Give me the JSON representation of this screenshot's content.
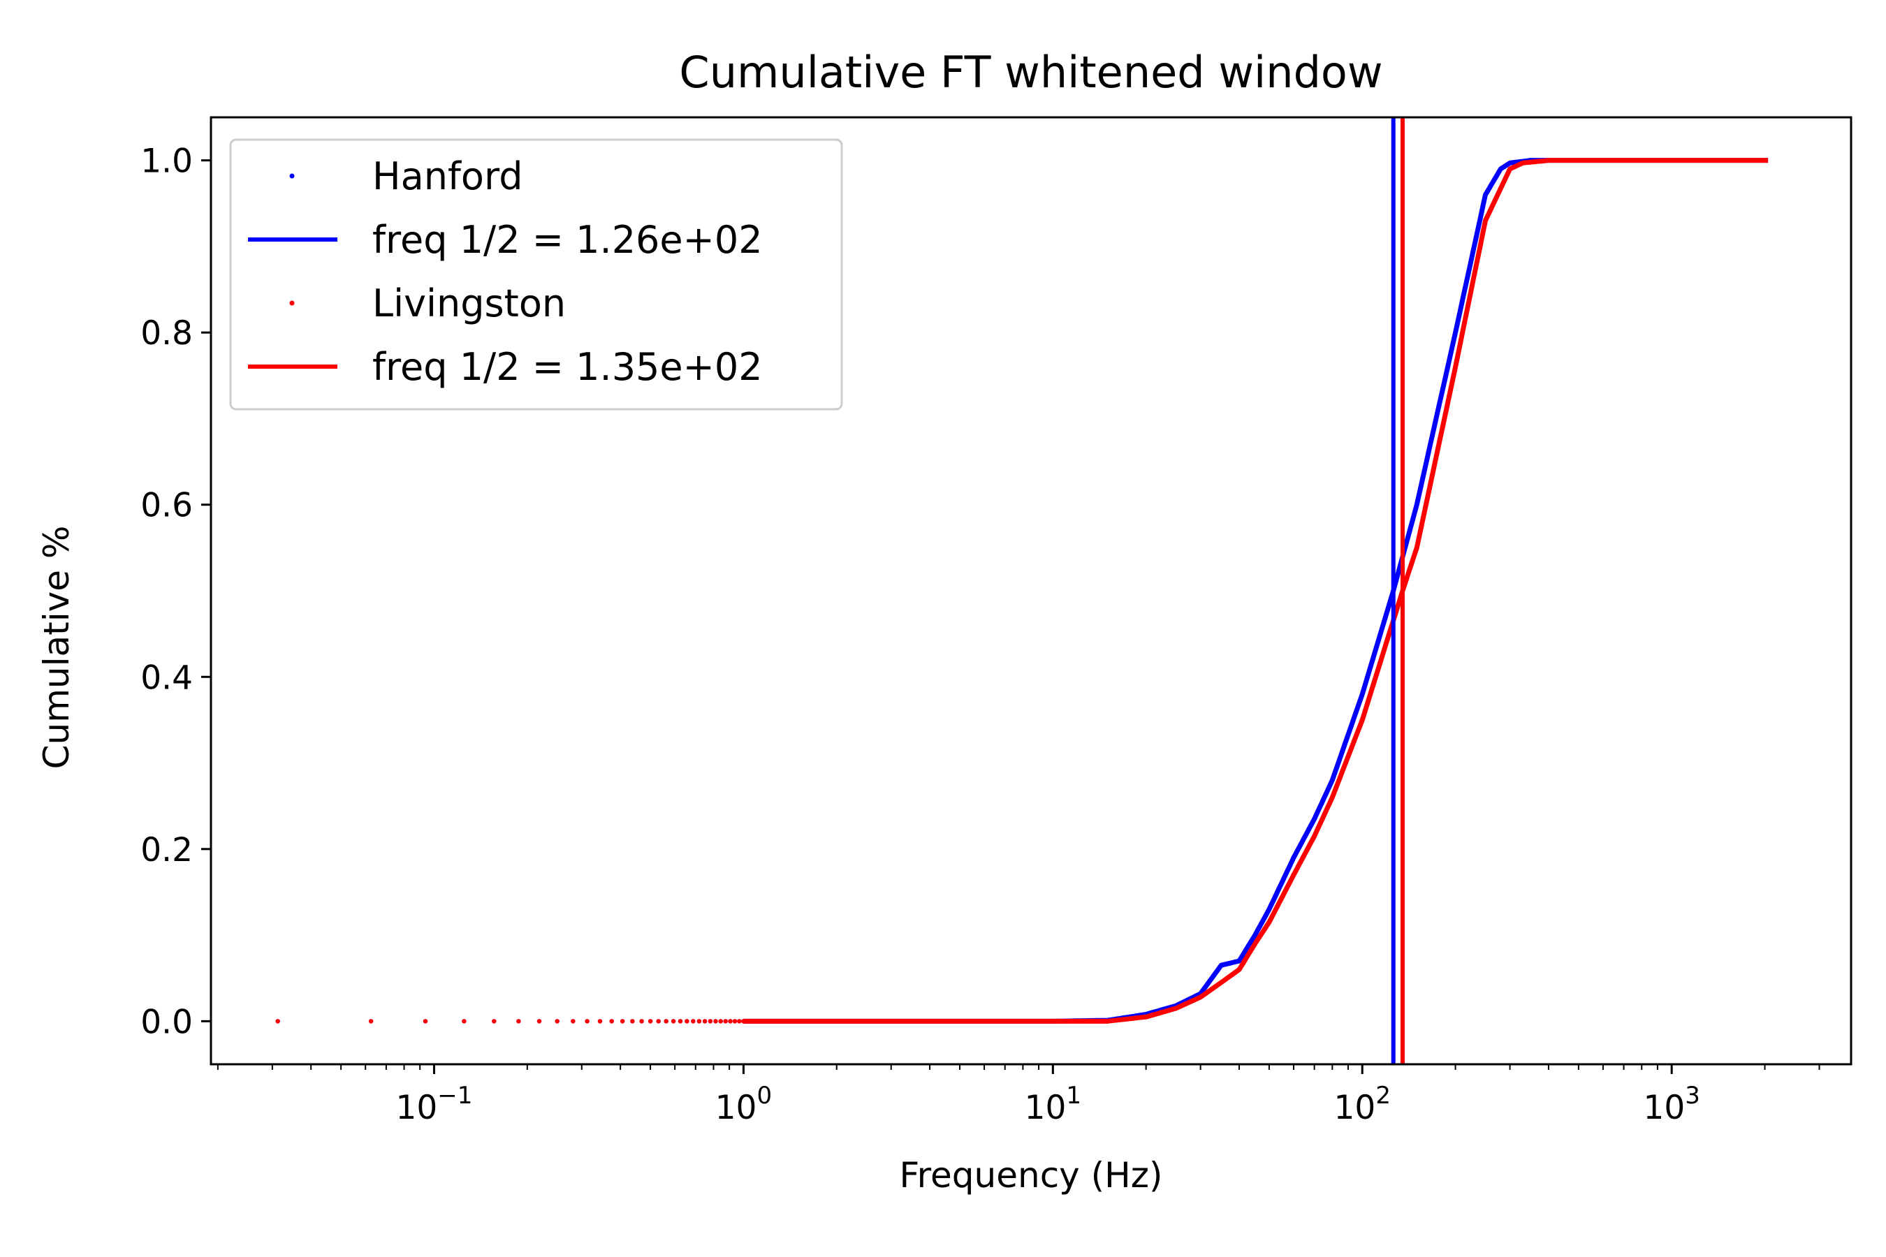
{
  "chart_data": {
    "type": "line",
    "title": "Cumulative FT whitened window",
    "xlabel": "Frequency (Hz)",
    "ylabel": "Cumulative %",
    "xscale": "log",
    "xlim": [
      0.019,
      3800
    ],
    "ylim": [
      -0.05,
      1.05
    ],
    "yticks": [
      {
        "value": 0.0,
        "label": "0.0"
      },
      {
        "value": 0.2,
        "label": "0.2"
      },
      {
        "value": 0.4,
        "label": "0.4"
      },
      {
        "value": 0.6,
        "label": "0.6"
      },
      {
        "value": 0.8,
        "label": "0.8"
      },
      {
        "value": 1.0,
        "label": "1.0"
      }
    ],
    "xticks": [
      {
        "value": 0.1,
        "base": "10",
        "exp": "−1"
      },
      {
        "value": 1,
        "base": "10",
        "exp": "0"
      },
      {
        "value": 10,
        "base": "10",
        "exp": "1"
      },
      {
        "value": 100,
        "base": "10",
        "exp": "2"
      },
      {
        "value": 1000,
        "base": "10",
        "exp": "3"
      }
    ],
    "legend_position": "top-left",
    "series": [
      {
        "name": "Hanford",
        "color": "#0000ff",
        "style": "dots",
        "x": [
          0.031,
          0.062,
          0.094,
          0.125,
          1,
          5,
          10,
          15,
          20,
          25,
          30,
          35,
          40,
          45,
          50,
          60,
          70,
          80,
          100,
          126,
          150,
          200,
          250,
          280,
          300,
          350,
          500,
          1000,
          2048
        ],
        "y": [
          0,
          0,
          0,
          0,
          0,
          0,
          0,
          0.001,
          0.008,
          0.018,
          0.032,
          0.065,
          0.07,
          0.1,
          0.13,
          0.19,
          0.235,
          0.28,
          0.38,
          0.5,
          0.6,
          0.8,
          0.96,
          0.99,
          0.997,
          1.0,
          1.0,
          1.0,
          1.0
        ]
      },
      {
        "name": "Livingston",
        "color": "#ff0000",
        "style": "dots",
        "x": [
          0.031,
          0.062,
          0.094,
          0.125,
          1,
          5,
          10,
          15,
          20,
          25,
          30,
          35,
          40,
          45,
          50,
          60,
          70,
          80,
          100,
          135,
          150,
          200,
          250,
          300,
          330,
          400,
          500,
          1000,
          2048
        ],
        "y": [
          0,
          0,
          0,
          0,
          0,
          0,
          0,
          0,
          0.005,
          0.015,
          0.028,
          0.045,
          0.06,
          0.09,
          0.115,
          0.17,
          0.215,
          0.26,
          0.35,
          0.5,
          0.55,
          0.76,
          0.93,
          0.99,
          0.997,
          1.0,
          1.0,
          1.0,
          1.0
        ]
      }
    ],
    "vlines": [
      {
        "name": "freq 1/2 = 1.26e+02",
        "x": 126,
        "color": "#0000ff"
      },
      {
        "name": "freq 1/2 = 1.35e+02",
        "x": 135,
        "color": "#ff0000"
      }
    ]
  }
}
